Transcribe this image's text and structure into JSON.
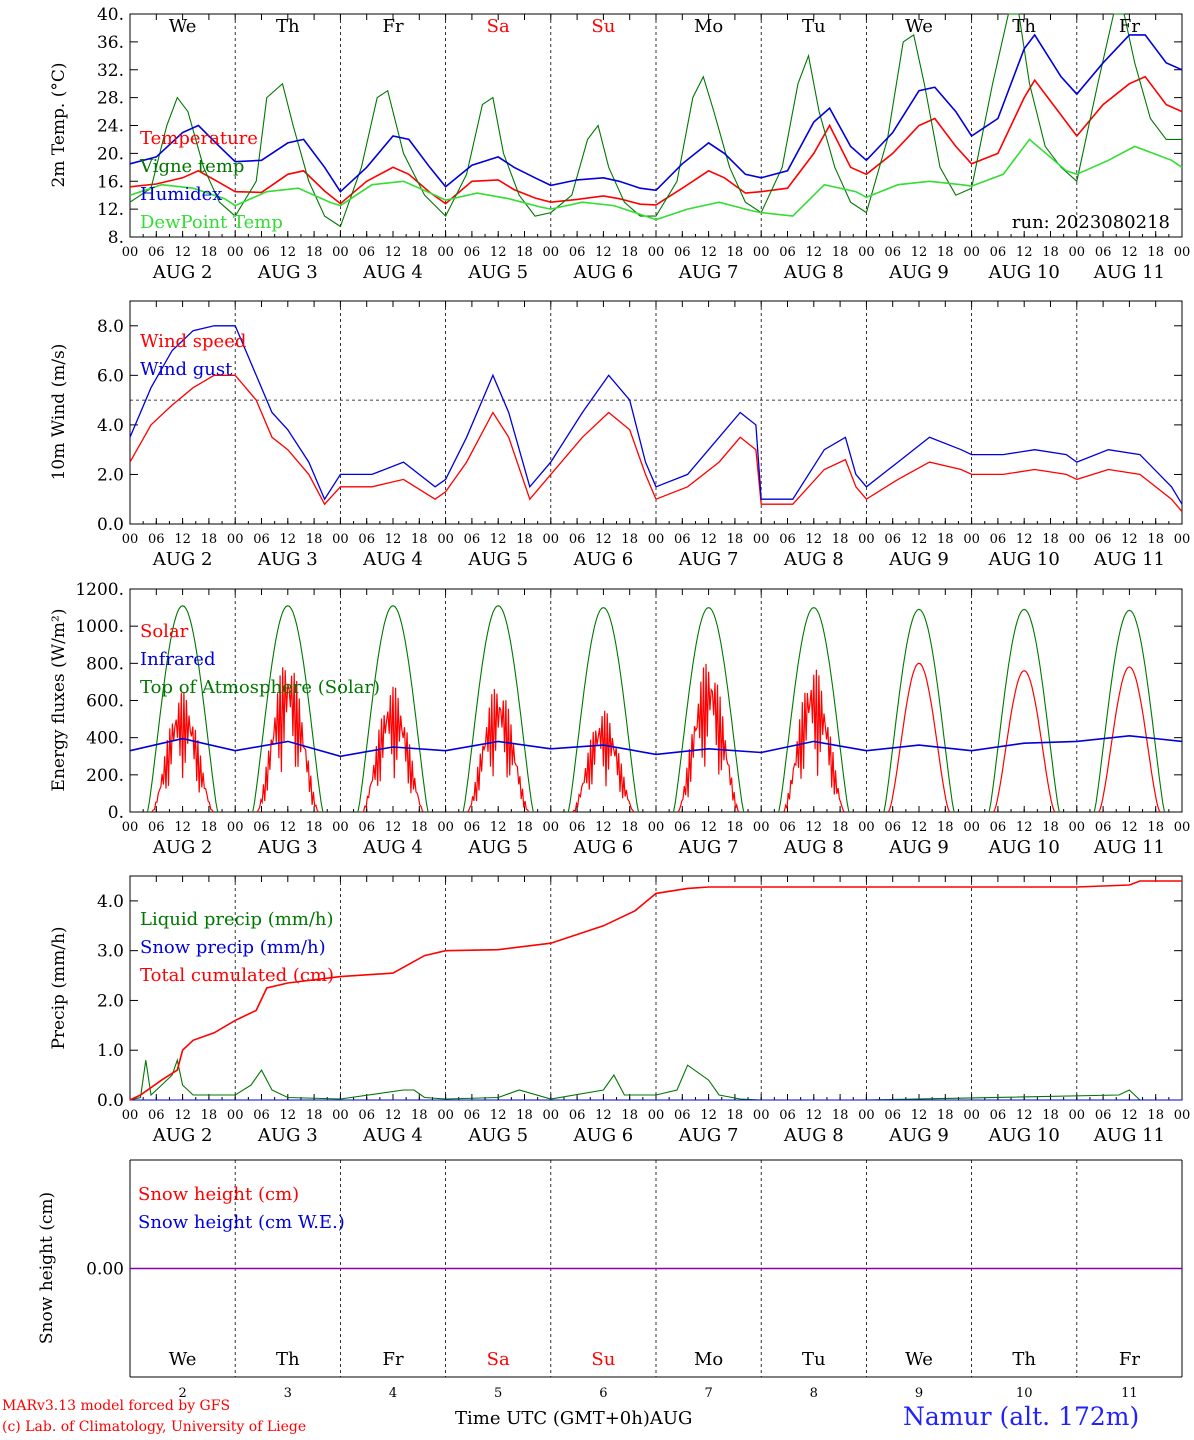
{
  "colors": {
    "red": "#ff0000",
    "green": "#007700",
    "blue": "#0000dd",
    "lightgreen": "#33dd33",
    "purple": "#8800aa",
    "grid": "#000000"
  },
  "time_axis": {
    "hour_ticks": [
      "00",
      "06",
      "12",
      "18"
    ],
    "final_tick": "00",
    "days": [
      "2",
      "3",
      "4",
      "5",
      "6",
      "7",
      "8",
      "9",
      "10",
      "11"
    ],
    "day_month": "AUG",
    "weekdays": [
      "We",
      "Th",
      "Fr",
      "Sa",
      "Su",
      "Mo",
      "Tu",
      "We",
      "Th",
      "Fr"
    ],
    "weekend_days": [
      "Sa",
      "Su"
    ]
  },
  "run_label": "run: 2023080218",
  "footer": {
    "model": "MARv3.13 model forced by GFS",
    "credit": "(c) Lab. of Climatology, University of Liege",
    "axis_title": "Time UTC (GMT+0h)AUG",
    "station": "Namur (alt. 172m)"
  },
  "chart_data": [
    {
      "type": "line",
      "ylabel": "2m Temp. (°C)",
      "ylim": [
        8,
        40
      ],
      "yticks": [
        "8.",
        "12.",
        "16.",
        "20.",
        "24.",
        "28.",
        "32.",
        "36.",
        "40."
      ],
      "x_unit": "days since AUG 2 00 UTC",
      "xlim": [
        0,
        10
      ],
      "grid": "vertical dashed at each day",
      "legend": "left",
      "series": [
        {
          "name": "Temperature",
          "color": "red",
          "x": [
            0,
            0.25,
            0.5,
            0.65,
            0.85,
            1,
            1.25,
            1.5,
            1.65,
            1.85,
            2,
            2.25,
            2.5,
            2.65,
            2.85,
            3,
            3.25,
            3.5,
            3.65,
            3.85,
            4,
            4.25,
            4.5,
            4.65,
            4.85,
            5,
            5.25,
            5.5,
            5.65,
            5.85,
            6,
            6.25,
            6.5,
            6.65,
            6.85,
            7,
            7.25,
            7.5,
            7.65,
            7.85,
            8,
            8.25,
            8.5,
            8.6,
            8.85,
            9,
            9.25,
            9.5,
            9.65,
            9.85,
            10
          ],
          "y": [
            15.2,
            15.6,
            16.5,
            17.5,
            15.8,
            14.5,
            14.4,
            17,
            17.5,
            14.6,
            12.8,
            16,
            18,
            17,
            14.4,
            12.8,
            16,
            16.2,
            14.8,
            13.6,
            13.0,
            13.4,
            13.9,
            13.5,
            12.7,
            12.6,
            15,
            17.5,
            16.5,
            14.3,
            14.5,
            15,
            20,
            24,
            18,
            17.0,
            20,
            24,
            25,
            21,
            18.5,
            20,
            28,
            30.5,
            25.5,
            22.5,
            27,
            30,
            31,
            27,
            26
          ]
        },
        {
          "name": "Vigne temp",
          "color": "green",
          "x": [
            0,
            0.2,
            0.35,
            0.45,
            0.55,
            0.7,
            0.85,
            1,
            1.2,
            1.3,
            1.45,
            1.55,
            1.7,
            1.85,
            2,
            2.2,
            2.35,
            2.45,
            2.6,
            2.8,
            3,
            3.2,
            3.35,
            3.45,
            3.55,
            3.7,
            3.85,
            4,
            4.2,
            4.35,
            4.45,
            4.55,
            4.7,
            4.85,
            5,
            5.2,
            5.35,
            5.45,
            5.55,
            5.7,
            5.85,
            6,
            6.2,
            6.35,
            6.45,
            6.55,
            6.7,
            6.85,
            7,
            7.2,
            7.35,
            7.45,
            7.55,
            7.7,
            7.85,
            8,
            8.2,
            8.35,
            8.45,
            8.55,
            8.7,
            8.85,
            9,
            9.2,
            9.35,
            9.45,
            9.55,
            9.7,
            9.85,
            10
          ],
          "y": [
            13,
            15,
            24,
            28,
            26,
            18,
            13,
            11,
            16,
            28,
            30,
            24,
            16,
            11,
            9.5,
            18,
            28,
            29,
            20,
            14,
            11,
            17,
            27,
            28,
            20,
            14,
            11,
            11.5,
            14,
            22,
            24,
            18,
            13,
            11,
            11,
            16,
            28,
            31,
            26,
            18,
            13,
            11.5,
            18,
            30,
            34,
            26,
            18,
            13,
            11.5,
            22,
            36,
            37,
            30,
            18,
            14,
            15,
            30,
            40,
            40,
            30,
            21,
            18,
            16,
            30,
            40,
            40,
            33,
            25,
            22,
            22
          ]
        },
        {
          "name": "Humidex",
          "color": "blue",
          "x": [
            0,
            0.25,
            0.5,
            0.65,
            0.85,
            1,
            1.25,
            1.5,
            1.65,
            1.85,
            2,
            2.25,
            2.5,
            2.65,
            2.85,
            3,
            3.25,
            3.5,
            3.65,
            3.85,
            4,
            4.25,
            4.5,
            4.65,
            4.85,
            5,
            5.25,
            5.5,
            5.65,
            5.85,
            6,
            6.25,
            6.5,
            6.65,
            6.85,
            7,
            7.25,
            7.5,
            7.65,
            7.85,
            8,
            8.25,
            8.5,
            8.6,
            8.85,
            9,
            9.25,
            9.5,
            9.65,
            9.85,
            10
          ],
          "y": [
            18.5,
            19.5,
            23,
            24,
            21,
            18.8,
            19,
            21.5,
            22,
            18,
            14.5,
            18,
            22.5,
            22,
            18,
            15.2,
            18.3,
            19.5,
            18,
            16.5,
            15.4,
            16.2,
            16.5,
            16,
            15,
            14.7,
            18.5,
            21.5,
            20,
            17,
            16.5,
            17.5,
            24.5,
            26.5,
            21,
            19,
            23,
            29,
            29.5,
            26,
            22.5,
            25,
            35,
            37,
            31,
            28.5,
            33,
            37,
            37,
            33,
            32
          ]
        },
        {
          "name": "DewPoint Temp",
          "color": "lightgreen",
          "x": [
            0,
            0.3,
            0.6,
            0.9,
            1,
            1.3,
            1.6,
            1.9,
            2,
            2.3,
            2.6,
            2.9,
            3,
            3.3,
            3.6,
            3.9,
            4,
            4.3,
            4.6,
            4.9,
            5,
            5.3,
            5.6,
            5.9,
            6,
            6.3,
            6.6,
            6.9,
            7,
            7.3,
            7.6,
            7.9,
            8,
            8.3,
            8.55,
            8.9,
            9,
            9.3,
            9.55,
            9.9,
            10
          ],
          "y": [
            14,
            15.5,
            15,
            13.5,
            12.5,
            14.5,
            15,
            13,
            12.5,
            15.5,
            16,
            14,
            13.3,
            14.3,
            13.5,
            12.3,
            12.0,
            13,
            12.5,
            11,
            10.5,
            12,
            13,
            11.8,
            11.5,
            11,
            15.5,
            14.5,
            13.7,
            15.5,
            16,
            15.5,
            15.3,
            17,
            22,
            17.5,
            17,
            19,
            21,
            19,
            18
          ]
        }
      ]
    },
    {
      "type": "line",
      "ylabel": "10m Wind (m/s)",
      "ylim": [
        0,
        9
      ],
      "yticks": [
        "0.0",
        "2.0",
        "4.0",
        "6.0",
        "8.0"
      ],
      "reference_line": 5.0,
      "xlim": [
        0,
        10
      ],
      "legend": "left",
      "series": [
        {
          "name": "Wind speed",
          "color": "red",
          "x": [
            0,
            0.2,
            0.4,
            0.6,
            0.8,
            1,
            1.2,
            1.35,
            1.5,
            1.7,
            1.85,
            2,
            2.3,
            2.6,
            2.9,
            3,
            3.2,
            3.45,
            3.6,
            3.8,
            4,
            4.3,
            4.55,
            4.75,
            4.9,
            5,
            5.3,
            5.6,
            5.8,
            5.95,
            6,
            6.3,
            6.6,
            6.8,
            6.9,
            7,
            7.3,
            7.6,
            7.9,
            8,
            8.3,
            8.6,
            8.9,
            9,
            9.3,
            9.6,
            9.9,
            10
          ],
          "y": [
            2.5,
            4.0,
            4.8,
            5.5,
            6.0,
            6.0,
            5.0,
            3.5,
            3.0,
            2.0,
            0.8,
            1.5,
            1.5,
            1.8,
            1.0,
            1.3,
            2.5,
            4.5,
            3.5,
            1.0,
            2.0,
            3.5,
            4.5,
            3.8,
            2.0,
            1.0,
            1.5,
            2.5,
            3.5,
            3.0,
            0.8,
            0.8,
            2.2,
            2.6,
            1.5,
            1.0,
            1.8,
            2.5,
            2.2,
            2.0,
            2.0,
            2.2,
            2.0,
            1.8,
            2.2,
            2.0,
            1.0,
            0.5
          ]
        },
        {
          "name": "Wind gust",
          "color": "blue",
          "x": [
            0,
            0.2,
            0.4,
            0.6,
            0.8,
            1,
            1.2,
            1.35,
            1.5,
            1.7,
            1.85,
            2,
            2.3,
            2.6,
            2.9,
            3,
            3.2,
            3.45,
            3.6,
            3.8,
            4,
            4.3,
            4.55,
            4.75,
            4.9,
            5,
            5.3,
            5.6,
            5.8,
            5.95,
            6,
            6.3,
            6.6,
            6.8,
            6.9,
            7,
            7.3,
            7.6,
            7.9,
            8,
            8.3,
            8.6,
            8.9,
            9,
            9.3,
            9.6,
            9.9,
            10
          ],
          "y": [
            3.5,
            5.5,
            7.0,
            7.8,
            8.0,
            8.0,
            6.0,
            4.5,
            3.8,
            2.5,
            1.0,
            2.0,
            2.0,
            2.5,
            1.5,
            1.8,
            3.5,
            6.0,
            4.5,
            1.5,
            2.5,
            4.5,
            6.0,
            5.0,
            2.5,
            1.5,
            2.0,
            3.5,
            4.5,
            4.0,
            1.0,
            1.0,
            3.0,
            3.5,
            2.0,
            1.5,
            2.5,
            3.5,
            3.0,
            2.8,
            2.8,
            3.0,
            2.8,
            2.5,
            3.0,
            2.8,
            1.5,
            0.8
          ]
        }
      ]
    },
    {
      "type": "line",
      "ylabel": "Energy fluxes (W/m²)",
      "ylim": [
        0,
        1200
      ],
      "yticks": [
        "0.",
        "200.",
        "400.",
        "600.",
        "800.",
        "1000.",
        "1200."
      ],
      "xlim": [
        0,
        10
      ],
      "legend": "left",
      "series": [
        {
          "name": "Solar",
          "color": "red",
          "day_peaks": [
            650,
            830,
            680,
            690,
            550,
            820,
            780,
            800,
            760,
            780
          ]
        },
        {
          "name": "Infrared",
          "color": "blue",
          "x": [
            0,
            0.5,
            1,
            1.5,
            2,
            2.5,
            3,
            3.5,
            4,
            4.5,
            5,
            5.5,
            6,
            6.5,
            7,
            7.5,
            8,
            8.5,
            9,
            9.5,
            10
          ],
          "y": [
            330,
            395,
            330,
            380,
            300,
            350,
            330,
            380,
            340,
            360,
            310,
            340,
            320,
            380,
            330,
            360,
            330,
            370,
            380,
            410,
            380
          ]
        },
        {
          "name": "Top of Atmosphere (Solar)",
          "color": "green",
          "day_peaks": [
            1110,
            1110,
            1110,
            1110,
            1100,
            1100,
            1100,
            1090,
            1090,
            1085
          ]
        }
      ]
    },
    {
      "type": "line",
      "ylabel": "Precip (mm/h)",
      "ylim": [
        0,
        4.5
      ],
      "yticks": [
        "0.0",
        "1.0",
        "2.0",
        "3.0",
        "4.0"
      ],
      "xlim": [
        0,
        10
      ],
      "legend": "left",
      "series": [
        {
          "name": "Liquid precip (mm/h)",
          "color": "green",
          "x": [
            0,
            0.1,
            0.15,
            0.2,
            0.3,
            0.4,
            0.45,
            0.5,
            0.6,
            1,
            1.15,
            1.25,
            1.35,
            1.5,
            2,
            2.6,
            2.7,
            2.8,
            3,
            3.5,
            3.7,
            4,
            4.5,
            4.6,
            4.7,
            5,
            5.2,
            5.3,
            5.5,
            5.6,
            5.8,
            6,
            7,
            9.4,
            9.5,
            9.6,
            10
          ],
          "y": [
            0,
            0.05,
            0.8,
            0.1,
            0.3,
            0.5,
            0.8,
            0.3,
            0.1,
            0.1,
            0.3,
            0.6,
            0.2,
            0.05,
            0.02,
            0.2,
            0.2,
            0.05,
            0.02,
            0.05,
            0.2,
            0.02,
            0.2,
            0.5,
            0.1,
            0.1,
            0.2,
            0.7,
            0.4,
            0.1,
            0.02,
            0,
            0,
            0.1,
            0.2,
            0,
            0
          ]
        },
        {
          "name": "Snow precip (mm/h)",
          "color": "blue",
          "x": [
            0,
            10
          ],
          "y": [
            0,
            0
          ]
        },
        {
          "name": "Total cumulated (cm)",
          "color": "red",
          "x": [
            0,
            0.1,
            0.3,
            0.45,
            0.5,
            0.6,
            0.8,
            1,
            1.2,
            1.3,
            1.5,
            2,
            2.5,
            2.8,
            3,
            3.5,
            4,
            4.5,
            4.8,
            5,
            5.3,
            5.5,
            5.7,
            6,
            7,
            8,
            9,
            9.5,
            9.6,
            10
          ],
          "y": [
            0,
            0.1,
            0.4,
            0.6,
            1.0,
            1.2,
            1.35,
            1.6,
            1.8,
            2.25,
            2.35,
            2.48,
            2.55,
            2.9,
            3.0,
            3.02,
            3.15,
            3.5,
            3.8,
            4.15,
            4.25,
            4.28,
            4.28,
            4.28,
            4.28,
            4.28,
            4.28,
            4.32,
            4.4,
            4.4
          ]
        }
      ]
    },
    {
      "type": "line",
      "ylabel": "Snow height (cm)",
      "yticks": [
        "0.00"
      ],
      "xlim": [
        0,
        10
      ],
      "legend": "left",
      "series": [
        {
          "name": "Snow height (cm)",
          "color": "red",
          "x": [
            0,
            10
          ],
          "y": [
            0,
            0
          ]
        },
        {
          "name": "Snow height (cm W.E.)",
          "color": "blue",
          "x": [
            0,
            10
          ],
          "y": [
            0,
            0
          ]
        }
      ]
    }
  ]
}
